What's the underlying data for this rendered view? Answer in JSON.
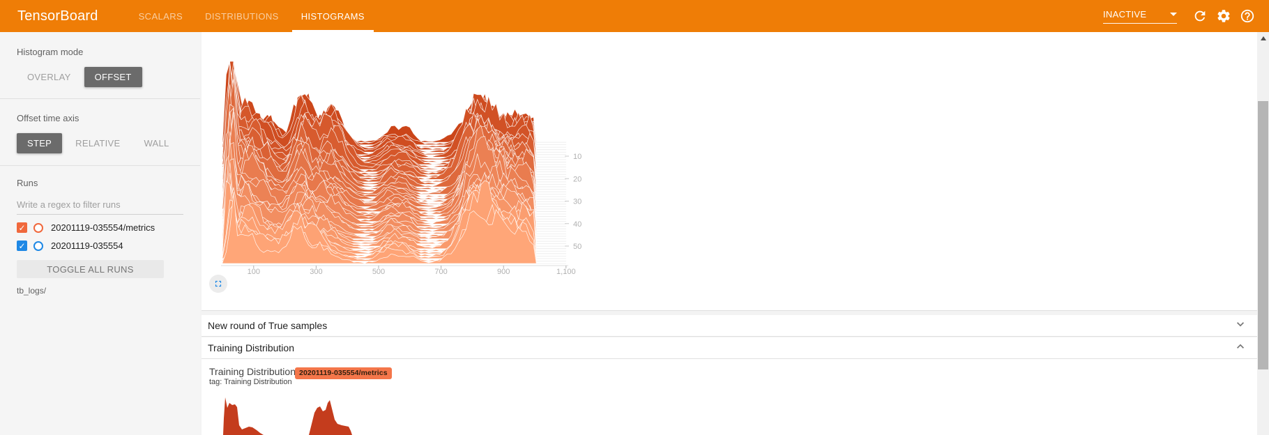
{
  "navbar": {
    "brand": "TensorBoard",
    "tabs": [
      {
        "label": "SCALARS"
      },
      {
        "label": "DISTRIBUTIONS"
      },
      {
        "label": "HISTOGRAMS"
      }
    ],
    "active_tab": "HISTOGRAMS",
    "status_dropdown": {
      "value": "INACTIVE"
    },
    "icon_names": [
      "refresh-icon",
      "settings-gear-icon",
      "help-icon"
    ]
  },
  "sidebar": {
    "histogram_mode": {
      "label": "Histogram mode",
      "options": [
        {
          "label": "OVERLAY",
          "selected": false
        },
        {
          "label": "OFFSET",
          "selected": true
        }
      ]
    },
    "offset_time_axis": {
      "label": "Offset time axis",
      "options": [
        {
          "label": "STEP",
          "selected": true
        },
        {
          "label": "RELATIVE",
          "selected": false
        },
        {
          "label": "WALL",
          "selected": false
        }
      ]
    },
    "runs": {
      "label": "Runs",
      "filter_placeholder": "Write a regex to filter runs",
      "items": [
        {
          "name": "20201119-035554/metrics",
          "checked": true,
          "color": "#f0683c"
        },
        {
          "name": "20201119-035554",
          "checked": true,
          "color": "#1e88e5"
        }
      ],
      "toggle_all_label": "TOGGLE ALL RUNS",
      "log_dir": "tb_logs/"
    }
  },
  "sections": [
    {
      "title": "New round of True samples",
      "collapsed": true
    },
    {
      "title": "Training Distribution",
      "collapsed": false
    }
  ],
  "training_card": {
    "title": "Training Distribution",
    "tag": "tag: Training Distribution",
    "badge": {
      "label": "20201119-035554/metrics",
      "color": "#f4764a"
    }
  },
  "chart_data": [
    {
      "id": "offset-step-histogram",
      "type": "area",
      "mode": "histogram-offset-ridgeline",
      "run": "20201119-035554/metrics",
      "x_ticks": [
        {
          "value": 100,
          "label": "100"
        },
        {
          "value": 300,
          "label": "300"
        },
        {
          "value": 500,
          "label": "500"
        },
        {
          "value": 700,
          "label": "700"
        },
        {
          "value": 900,
          "label": "900"
        },
        {
          "value": 1100,
          "label": "1,100"
        }
      ],
      "x_range": [
        0,
        1210
      ],
      "y_ticks": [
        10,
        20,
        30,
        40,
        50
      ],
      "num_slices": 50,
      "x_domain_data_max": 1005,
      "color_back": "#cb4519",
      "color_front": "#ffa678",
      "stroke": "#ffffff",
      "grid_color": "#ebebeb",
      "tick_color": "#b0b0b0",
      "profile_bumps": [
        {
          "center": 28,
          "sigma": 9,
          "amp_front": 75,
          "amp_back": 130
        },
        {
          "center": 62,
          "sigma": 18,
          "amp_front": 34,
          "amp_back": 55
        },
        {
          "center": 100,
          "sigma": 20,
          "amp_front": 26,
          "amp_back": 42
        },
        {
          "center": 148,
          "sigma": 24,
          "amp_front": 18,
          "amp_back": 28
        },
        {
          "center": 225,
          "sigma": 30,
          "amp_front": 36,
          "amp_back": 6
        },
        {
          "center": 258,
          "sigma": 22,
          "amp_front": 10,
          "amp_back": 58
        },
        {
          "center": 305,
          "sigma": 26,
          "amp_front": 22,
          "amp_back": 10
        },
        {
          "center": 352,
          "sigma": 38,
          "amp_front": 6,
          "amp_back": 50
        },
        {
          "center": 540,
          "sigma": 26,
          "amp_front": 13,
          "amp_back": 15
        },
        {
          "center": 592,
          "sigma": 20,
          "amp_front": 9,
          "amp_back": 11
        },
        {
          "center": 800,
          "sigma": 34,
          "amp_front": 55,
          "amp_back": 42
        },
        {
          "center": 860,
          "sigma": 36,
          "amp_front": 48,
          "amp_back": 40
        },
        {
          "center": 930,
          "sigma": 38,
          "amp_front": 40,
          "amp_back": 30
        },
        {
          "center": 985,
          "sigma": 24,
          "amp_front": 30,
          "amp_back": 22
        }
      ],
      "noise": 2.5
    },
    {
      "id": "training-distribution-mini",
      "type": "area",
      "run": "20201119-035554/metrics",
      "color": "#c43c1d",
      "clusters": [
        [
          [
            31,
            68
          ],
          [
            32,
            44
          ],
          [
            34,
            14
          ],
          [
            37,
            29
          ],
          [
            40,
            22
          ],
          [
            44,
            25
          ],
          [
            48,
            24
          ],
          [
            51,
            28
          ],
          [
            54,
            54
          ],
          [
            58,
            60
          ],
          [
            63,
            58
          ],
          [
            68,
            56
          ],
          [
            73,
            57
          ],
          [
            79,
            61
          ],
          [
            84,
            65
          ],
          [
            89,
            68
          ]
        ],
        [
          [
            154,
            68
          ],
          [
            158,
            52
          ],
          [
            162,
            36
          ],
          [
            166,
            29
          ],
          [
            170,
            27
          ],
          [
            174,
            34
          ],
          [
            178,
            32
          ],
          [
            181,
            22
          ],
          [
            184,
            18
          ],
          [
            188,
            34
          ],
          [
            191,
            46
          ],
          [
            195,
            52
          ],
          [
            201,
            54
          ],
          [
            206,
            55
          ],
          [
            211,
            56
          ],
          [
            214,
            62
          ],
          [
            216,
            68
          ]
        ]
      ]
    }
  ]
}
